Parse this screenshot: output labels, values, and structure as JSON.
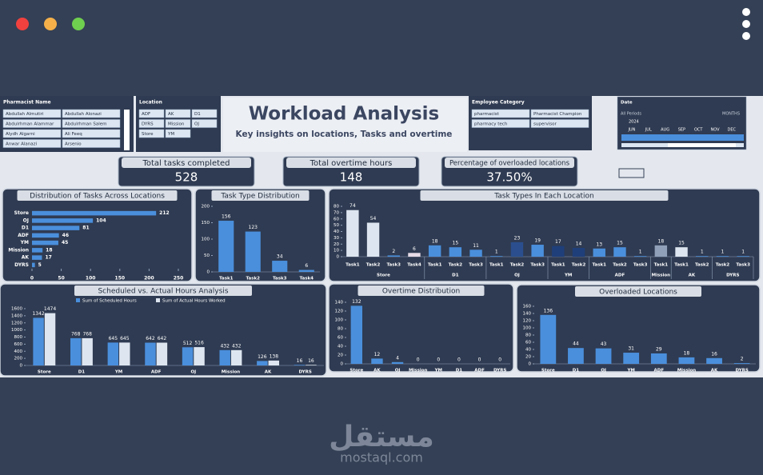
{
  "header": {
    "title": "Workload Analysis",
    "subtitle": "Key insights on locations, Tasks and overtime"
  },
  "slicers": [
    {
      "title": "Pharmacist Name",
      "items": [
        "Abdullah Almutiri",
        "Abdullah Alonazi",
        "Abdulrhman Alammar",
        "Abdulrhman Salem",
        "Alydh Algarni",
        "Ali Feeq",
        "Anwar Alanazi",
        "Arsenio"
      ]
    },
    {
      "title": "Location",
      "items": [
        "ADF",
        "AK",
        "D1",
        "DYRS",
        "Mission",
        "OJ",
        "Store",
        "YM"
      ]
    },
    {
      "title": "Employee Category",
      "items": [
        "pharmacist",
        "Pharmacist Champion",
        "pharmacy tech",
        "supervisor"
      ]
    }
  ],
  "date_filter": {
    "title": "Date",
    "period": "All Periods",
    "level": "MONTHS",
    "year": "2024",
    "months": [
      "JUN",
      "JUL",
      "AUG",
      "SEP",
      "OCT",
      "NOV",
      "DEC"
    ]
  },
  "kpis": [
    {
      "label": "Total tasks completed",
      "value": 528
    },
    {
      "label": "Total overtime hours",
      "value": 148
    },
    {
      "label": "Percentage of overloaded locations",
      "value": "37.50%"
    }
  ],
  "chart_data": [
    {
      "type": "hbar",
      "title": "Distribution of Tasks Across Locations",
      "categories": [
        "Store",
        "OJ",
        "D1",
        "ADF",
        "YM",
        "Mission",
        "AK",
        "DYRS"
      ],
      "values": [
        212,
        104,
        81,
        46,
        45,
        18,
        17,
        5
      ],
      "color": "#4a8fdc",
      "xlim": [
        0,
        250
      ],
      "xticks": [
        0,
        50,
        100,
        150,
        200,
        250
      ]
    },
    {
      "type": "bar",
      "title": "Task Type Distribution",
      "categories": [
        "Task1",
        "Task2",
        "Task3",
        "Task4"
      ],
      "values": [
        156,
        123,
        34,
        6
      ],
      "color": "#4a8fdc",
      "ylim": [
        0,
        200
      ],
      "yticks": [
        0,
        50,
        100,
        150,
        200
      ]
    },
    {
      "type": "grouped",
      "title": "Task Types In Each Location",
      "groups": [
        {
          "name": "Store",
          "categories": [
            "Task1",
            "Task2",
            "Task3",
            "Task4"
          ],
          "values": [
            74,
            54,
            2,
            6
          ],
          "colors": [
            "#dde5f0",
            "#dde5f0",
            "#4a8fdc",
            "#e6dbe8"
          ]
        },
        {
          "name": "D1",
          "categories": [
            "Task1",
            "Task2",
            "Task3"
          ],
          "values": [
            18,
            15,
            11
          ],
          "colors": [
            "#4a8fdc",
            "#4a8fdc",
            "#4a8fdc"
          ]
        },
        {
          "name": "OJ",
          "categories": [
            "Task1",
            "Task2",
            "Task3"
          ],
          "values": [
            1,
            23,
            19
          ],
          "colors": [
            "#4a8fdc",
            "#2b4f8e",
            "#4a8fdc"
          ]
        },
        {
          "name": "YM",
          "categories": [
            "Task1",
            "Task2"
          ],
          "values": [
            17,
            14
          ],
          "colors": [
            "#1f3f7a",
            "#1f3f7a"
          ]
        },
        {
          "name": "ADF",
          "categories": [
            "Task1",
            "Task2",
            "Task3"
          ],
          "values": [
            13,
            15,
            1
          ],
          "colors": [
            "#4a8fdc",
            "#4a8fdc",
            "#4a8fdc"
          ]
        },
        {
          "name": "Mission",
          "categories": [
            "Task1"
          ],
          "values": [
            18
          ],
          "colors": [
            "#8fa0b8"
          ]
        },
        {
          "name": "AK",
          "categories": [
            "Task1",
            "Task2"
          ],
          "values": [
            15,
            1
          ],
          "colors": [
            "#dde5f0",
            "#4a8fdc"
          ]
        },
        {
          "name": "DYRS",
          "categories": [
            "Task2",
            "Task3"
          ],
          "values": [
            1,
            1
          ],
          "colors": [
            "#4a8fdc",
            "#4a8fdc"
          ]
        }
      ],
      "ylim": [
        0,
        80
      ],
      "yticks": [
        0,
        10,
        20,
        30,
        40,
        50,
        60,
        70,
        80
      ]
    },
    {
      "type": "bar",
      "title": "Scheduled vs. Actual Hours Analysis",
      "categories": [
        "Store",
        "D1",
        "YM",
        "ADF",
        "OJ",
        "Mission",
        "AK",
        "DYRS"
      ],
      "series": [
        {
          "name": "Sum of Scheduled Hours",
          "color": "#4a8fdc",
          "values": [
            1342,
            768,
            645,
            642,
            512,
            432,
            126,
            16
          ]
        },
        {
          "name": "Sum of Actual Hours Worked",
          "color": "#dde5f0",
          "values": [
            1474,
            768,
            645,
            642,
            516,
            432,
            138,
            16
          ]
        }
      ],
      "ylim": [
        0,
        1600
      ],
      "yticks": [
        0,
        200,
        400,
        600,
        800,
        1000,
        1200,
        1400,
        1600
      ]
    },
    {
      "type": "bar",
      "title": "Overtime Distribution",
      "categories": [
        "Store",
        "AK",
        "OJ",
        "Mission",
        "YM",
        "D1",
        "ADF",
        "DYRS"
      ],
      "values": [
        132,
        12,
        4,
        0,
        0,
        0,
        0,
        0
      ],
      "color": "#4a8fdc",
      "ylim": [
        0,
        140
      ],
      "yticks": [
        0,
        20,
        40,
        60,
        80,
        100,
        120,
        140
      ]
    },
    {
      "type": "bar",
      "title": "Overloaded Locations",
      "categories": [
        "Store",
        "D1",
        "OJ",
        "YM",
        "ADF",
        "Mission",
        "AK",
        "DYRS"
      ],
      "values": [
        136,
        44,
        43,
        31,
        29,
        18,
        16,
        2
      ],
      "color": "#4a8fdc",
      "ylim": [
        0,
        160
      ],
      "yticks": [
        0,
        20,
        40,
        60,
        80,
        100,
        120,
        140,
        160
      ]
    }
  ],
  "watermark": {
    "arabic": "مستقل",
    "latin": "mostaql.com"
  }
}
